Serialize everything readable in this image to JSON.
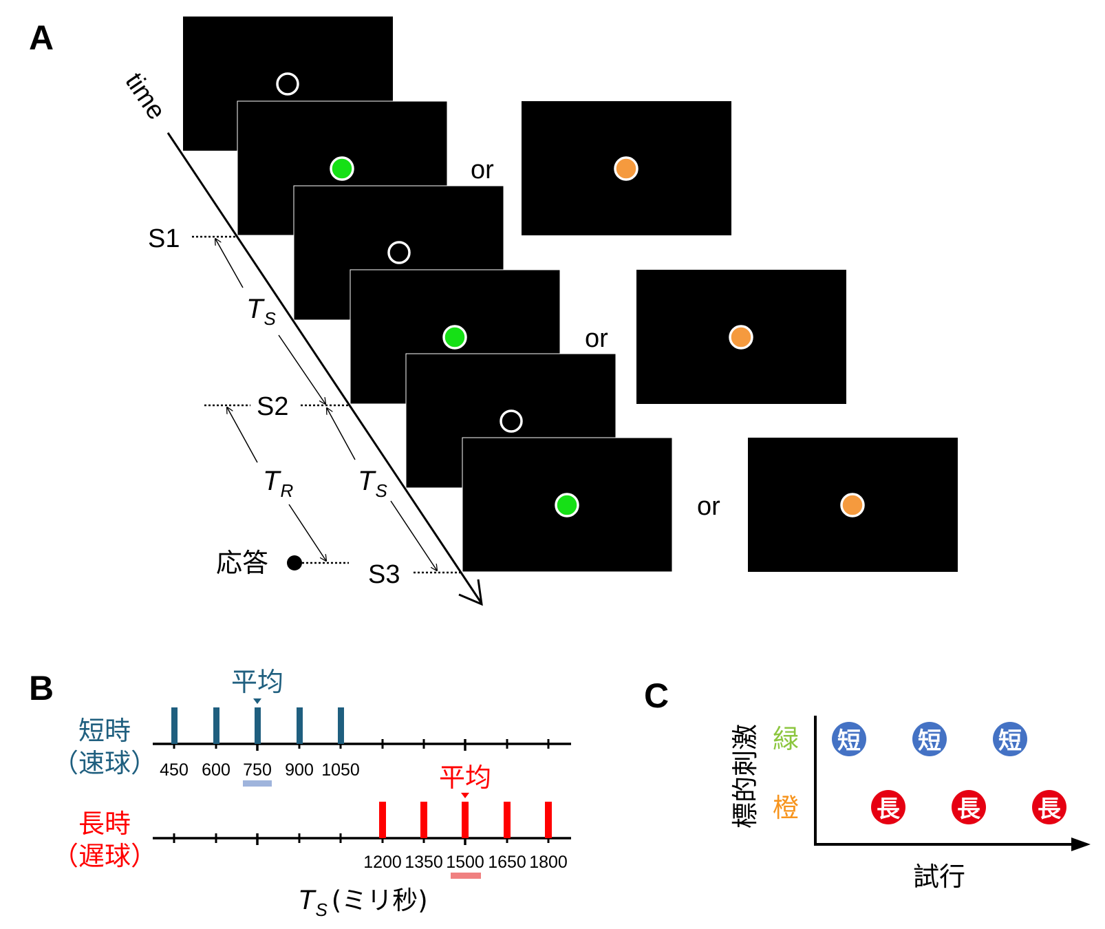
{
  "panel_a": {
    "letter": "A",
    "time_label": "time",
    "or_label": "or",
    "s1": "S1",
    "s2": "S2",
    "s3": "S3",
    "ts_main": "T",
    "ts_sub": "S",
    "tr_main": "T",
    "tr_sub": "R",
    "response": "応答"
  },
  "panel_b": {
    "letter": "B",
    "short_line1": "短時",
    "short_line2": "（速球）",
    "long_line1": "長時",
    "long_line2": "（遅球）",
    "mean_label": "平均",
    "short_ticks": [
      "450",
      "600",
      "750",
      "900",
      "1050"
    ],
    "long_ticks": [
      "1200",
      "1350",
      "1500",
      "1650",
      "1800"
    ],
    "axis_main": "T",
    "axis_sub": "S",
    "axis_rest": "(ミリ秒)",
    "colors": {
      "short": "#1f5f7f",
      "long": "#ff0000",
      "short_mean_bar": "#9fb4dc",
      "long_mean_bar": "#f08080"
    }
  },
  "panel_c": {
    "letter": "C",
    "y_label": "標的刺激",
    "green_label": "緑",
    "orange_label": "橙",
    "x_label": "試行",
    "short_char": "短",
    "long_char": "長",
    "colors": {
      "green": "#8cc63f",
      "orange": "#f7941d",
      "short_circle": "#4472c4",
      "long_circle": "#e60012"
    }
  }
}
